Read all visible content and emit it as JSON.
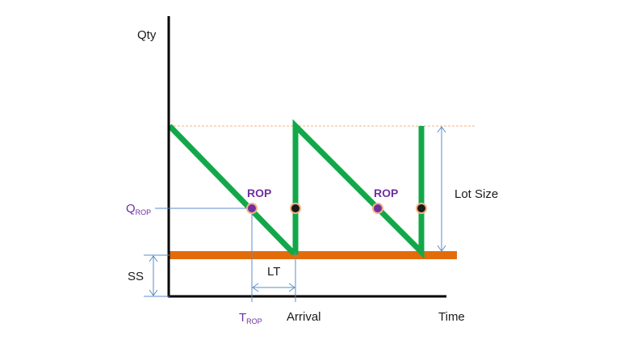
{
  "axes": {
    "y_label": "Qty",
    "x_label": "Time"
  },
  "labels": {
    "q_rop": {
      "main": "Q",
      "sub": "ROP"
    },
    "t_rop": {
      "main": "T",
      "sub": "ROP"
    },
    "rop_1": "ROP",
    "rop_2": "ROP",
    "lot_size": "Lot Size",
    "ss": "SS",
    "lt": "LT",
    "arrival": "Arrival"
  },
  "colors": {
    "inventory_line": "#12a84a",
    "safety_stock_bar": "#e36c0a",
    "rop_text": "#7030a0",
    "rop_marker": "#7030a0",
    "arrival_marker": "#1a1a1a",
    "marker_ring": "#f4b183",
    "guide_line": "#5b8ec9",
    "max_level_dash": "#f4b183",
    "q_rop_text": "#7030a0"
  }
}
